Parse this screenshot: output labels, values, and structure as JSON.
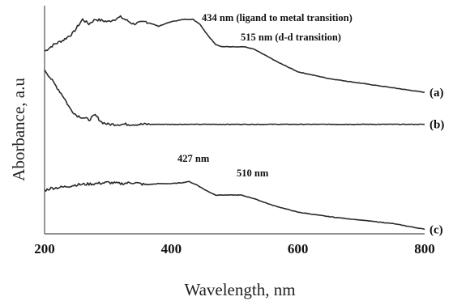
{
  "chart_data": {
    "type": "line",
    "xlabel": "Wavelength, nm",
    "ylabel": "Aborbance, a.u",
    "xlim": [
      200,
      800
    ],
    "xticks": [
      "200",
      "400",
      "600",
      "800"
    ],
    "yaxis_ticks": "none",
    "grid": false,
    "series": [
      {
        "name": "(a)",
        "x": [
          200,
          215,
          230,
          245,
          260,
          270,
          280,
          300,
          320,
          340,
          360,
          380,
          400,
          420,
          434,
          445,
          455,
          470,
          480,
          500,
          515,
          530,
          550,
          570,
          600,
          650,
          700,
          750,
          800
        ],
        "y": [
          0.8,
          0.83,
          0.85,
          0.88,
          0.94,
          0.92,
          0.94,
          0.93,
          0.95,
          0.92,
          0.93,
          0.91,
          0.93,
          0.94,
          0.94,
          0.92,
          0.88,
          0.83,
          0.82,
          0.82,
          0.82,
          0.81,
          0.78,
          0.75,
          0.71,
          0.68,
          0.66,
          0.64,
          0.62
        ]
      },
      {
        "name": "(b)",
        "x": [
          200,
          210,
          220,
          230,
          240,
          250,
          260,
          270,
          280,
          290,
          300,
          350,
          400,
          500,
          600,
          700,
          800
        ],
        "y": [
          0.72,
          0.68,
          0.64,
          0.6,
          0.55,
          0.52,
          0.51,
          0.5,
          0.52,
          0.49,
          0.48,
          0.48,
          0.48,
          0.48,
          0.48,
          0.48,
          0.48
        ]
      },
      {
        "name": "(c)",
        "x": [
          200,
          210,
          230,
          250,
          280,
          300,
          320,
          340,
          360,
          380,
          400,
          420,
          427,
          440,
          455,
          470,
          490,
          510,
          530,
          560,
          600,
          650,
          700,
          750,
          800
        ],
        "y": [
          0.19,
          0.2,
          0.205,
          0.215,
          0.22,
          0.225,
          0.22,
          0.225,
          0.215,
          0.22,
          0.22,
          0.225,
          0.23,
          0.215,
          0.19,
          0.17,
          0.17,
          0.17,
          0.155,
          0.125,
          0.095,
          0.075,
          0.06,
          0.045,
          0.02
        ]
      }
    ],
    "annotations": [
      {
        "text": "434 nm (ligand to metal transition)",
        "x": 434,
        "series": "(a)"
      },
      {
        "text": "515 nm (d-d transition)",
        "x": 515,
        "series": "(a)"
      },
      {
        "text": "427 nm",
        "x": 427,
        "series": "(c)"
      },
      {
        "text": "510 nm",
        "x": 510,
        "series": "(c)"
      }
    ]
  }
}
